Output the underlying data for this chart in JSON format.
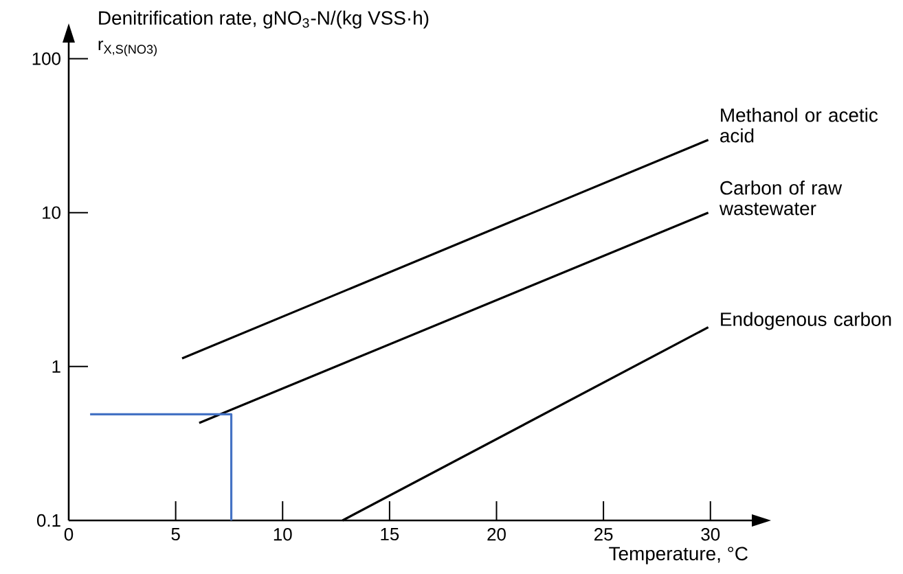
{
  "chart_data": {
    "type": "line",
    "ylabel": "Denitrification rate, gNO$_{3}$-N/(kg VSS·h)",
    "xlabel": "Temperature, °C",
    "annotations": [
      "r$_{X,S(NO3)}$"
    ],
    "log": "y",
    "xlim": [
      0,
      32
    ],
    "ylim": [
      0.1,
      130
    ],
    "xticks": [
      0,
      5,
      10,
      15,
      20,
      25,
      30
    ],
    "yticks": [
      0.1,
      1,
      10,
      100
    ],
    "series": [
      {
        "name": "Methanol or acetic acid",
        "color": "#000000",
        "x": [
          5.3,
          29.9
        ],
        "values": [
          1.13,
          29.7
        ]
      },
      {
        "name": "Carbon of raw wastewater",
        "color": "#000000",
        "x": [
          6.1,
          29.9
        ],
        "values": [
          0.43,
          10
        ]
      },
      {
        "name": "Endogenous carbon",
        "color": "#000000",
        "x": [
          12.8,
          29.9
        ],
        "values": [
          0.1,
          1.8
        ]
      },
      {
        "color": "#4472c4",
        "x": [
          1.0,
          7.6,
          7.6
        ],
        "values": [
          0.49,
          0.49,
          0.1
        ]
      }
    ]
  }
}
